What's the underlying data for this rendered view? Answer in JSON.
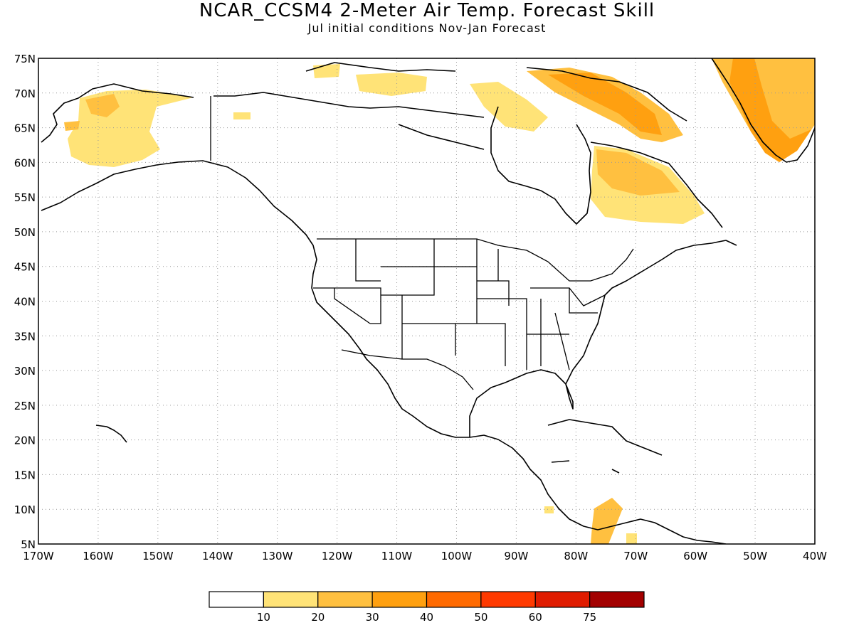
{
  "title": "NCAR_CCSM4 2-Meter Air Temp. Forecast Skill",
  "subtitle": "Jul initial conditions   Nov-Jan Forecast",
  "map": {
    "lon_range": [
      -170,
      -40
    ],
    "lat_range": [
      5,
      75
    ],
    "lat_labels": [
      "5N",
      "10N",
      "15N",
      "20N",
      "25N",
      "30N",
      "35N",
      "40N",
      "45N",
      "50N",
      "55N",
      "60N",
      "65N",
      "70N",
      "75N"
    ],
    "lon_labels": [
      "170W",
      "160W",
      "150W",
      "140W",
      "130W",
      "120W",
      "110W",
      "100W",
      "90W",
      "80W",
      "70W",
      "60W",
      "50W",
      "40W"
    ],
    "gridlines": "dotted"
  },
  "legend": {
    "labels": [
      "10",
      "20",
      "30",
      "40",
      "50",
      "60",
      "75"
    ],
    "colors": [
      "#ffffff",
      "#ffe377",
      "#ffc040",
      "#ffa010",
      "#ff6a00",
      "#ff3a00",
      "#e01c00",
      "#a30000"
    ]
  },
  "skill_regions": [
    {
      "name": "alaska",
      "color": "#ffe377"
    },
    {
      "name": "alaska-core",
      "color": "#ffc040"
    },
    {
      "name": "arctic-islands",
      "color": "#ffe377"
    },
    {
      "name": "baffin",
      "color": "#ffc040"
    },
    {
      "name": "baffin-core",
      "color": "#ffa010"
    },
    {
      "name": "quebec",
      "color": "#ffe377"
    },
    {
      "name": "quebec-core",
      "color": "#ffc040"
    },
    {
      "name": "greenland",
      "color": "#ffc040"
    },
    {
      "name": "greenland-core",
      "color": "#ffa010"
    },
    {
      "name": "south-america",
      "color": "#ffc040"
    }
  ]
}
